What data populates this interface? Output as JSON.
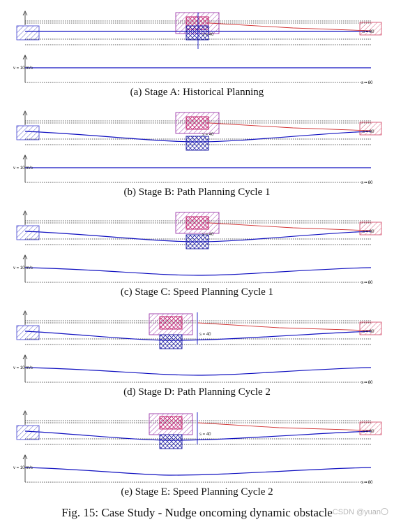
{
  "figure_caption": "Fig. 15: Case Study - Nudge oncoming dynamic obstacle",
  "watermark": "CSDN @yuan〇",
  "colors": {
    "ego": "#3a3ad0",
    "obstacle_dynamic": "#c02050",
    "obstacle_static": "#d04060",
    "path": "#1010c0",
    "reference": "#d03030",
    "boundary": "#222222"
  },
  "stages": [
    {
      "caption": "(a) Stage A: Historical Planning",
      "v_label": "v = 10 m/s",
      "s_label": "s = 80",
      "obs_label": "s = 40"
    },
    {
      "caption": "(b) Stage B: Path Planning Cycle 1",
      "v_label": "v = 10 m/s",
      "s_label": "s = 80",
      "obs_label": "s = 40"
    },
    {
      "caption": "(c) Stage C: Speed Planning Cycle 1",
      "v_label": "v = 10 m/s",
      "s_label": "s = 80",
      "obs_label": "s = 40"
    },
    {
      "caption": "(d) Stage D: Path Planning Cycle 2",
      "v_label": "v = 10 m/s",
      "s_label": "s = 80",
      "obs_label": "s = 40"
    },
    {
      "caption": "(e) Stage E: Speed Planning Cycle 2",
      "v_label": "v = 10 m/s",
      "s_label": "s = 80",
      "obs_label": "s = 40"
    }
  ]
}
